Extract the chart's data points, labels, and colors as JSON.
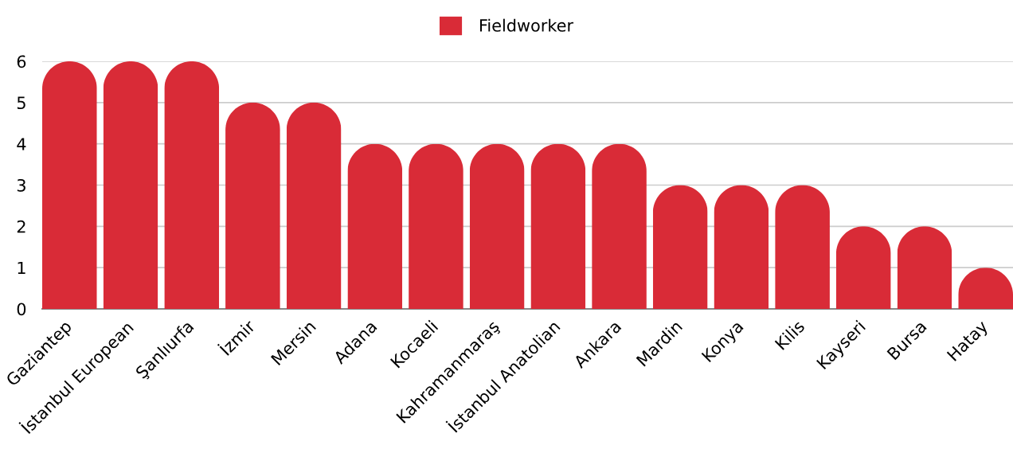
{
  "chart_data": {
    "type": "bar",
    "categories": [
      "Gaziantep",
      "İstanbul European",
      "Şanlıurfa",
      "İzmir",
      "Mersin",
      "Adana",
      "Kocaeli",
      "Kahramanmaraş",
      "İstanbul Anatolian",
      "Ankara",
      "Mardin",
      "Konya",
      "Kilis",
      "Kayseri",
      "Bursa",
      "Hatay"
    ],
    "series": [
      {
        "name": "Fieldworker",
        "color": "#d92b37",
        "values": [
          6,
          6,
          6,
          5,
          5,
          4,
          4,
          4,
          4,
          4,
          3,
          3,
          3,
          2,
          2,
          1
        ]
      }
    ],
    "ylim": [
      0,
      6
    ],
    "yticks": [
      0,
      1,
      2,
      3,
      4,
      5,
      6
    ],
    "grid": "y",
    "legend": "top"
  }
}
